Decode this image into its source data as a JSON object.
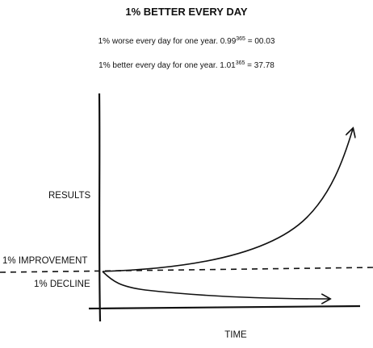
{
  "header": {
    "title": "1% BETTER EVERY DAY"
  },
  "formulas": [
    {
      "text": "1% worse every day for one year. 0.99",
      "exponent": "365",
      "result": " = 00.03"
    },
    {
      "text": "1% better every day for one year. 1.01",
      "exponent": "365",
      "result": " = 37.78"
    }
  ],
  "labels": {
    "y_axis": "RESULTS",
    "x_axis": "TIME",
    "improvement": "1% IMPROVEMENT",
    "decline": "1% DECLINE"
  }
}
